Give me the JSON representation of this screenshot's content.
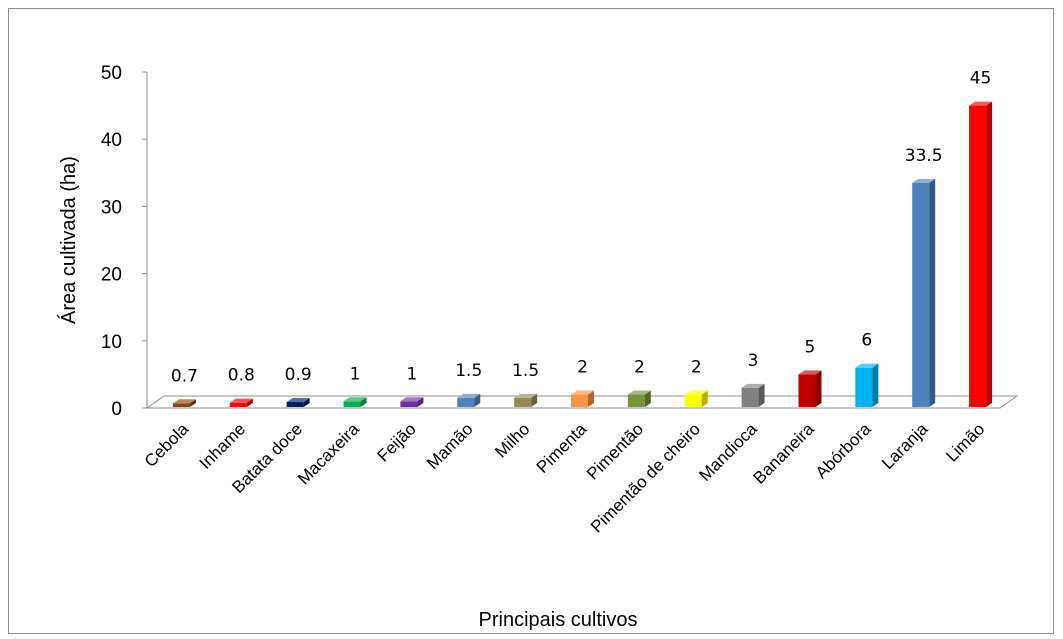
{
  "chart_data": {
    "type": "bar",
    "title": "",
    "xlabel": "Principais cultivos",
    "ylabel": "Área cultivada (ha)",
    "ylim": [
      0,
      50
    ],
    "yticks": [
      "0",
      "10",
      "20",
      "30",
      "40",
      "50"
    ],
    "grid": false,
    "legend": "none",
    "categories": [
      "Cebola",
      "Inhame",
      "Batata doce",
      "Macaxeira",
      "Feijão",
      "Mamão",
      "Milho",
      "Pimenta",
      "Pimentão",
      "Pimentão de cheiro",
      "Mandioca",
      "Bananeira",
      "Abórbora",
      "Laranja",
      "Limão"
    ],
    "values": [
      0.7,
      0.8,
      0.9,
      1,
      1,
      1.5,
      1.5,
      2,
      2,
      2,
      3,
      5,
      6,
      33.5,
      45
    ],
    "data_labels": [
      "0.7",
      "0.8",
      "0.9",
      "1",
      "1",
      "1.5",
      "1.5",
      "2",
      "2",
      "2",
      "3",
      "5",
      "6",
      "33.5",
      "45"
    ],
    "colors": [
      "#8B4513",
      "#FF0000",
      "#002060",
      "#00B050",
      "#7030A0",
      "#4F81BD",
      "#948A54",
      "#F79646",
      "#77933C",
      "#FFFF00",
      "#808080",
      "#C00000",
      "#00B0F0",
      "#4F81BD",
      "#FF0000"
    ]
  }
}
